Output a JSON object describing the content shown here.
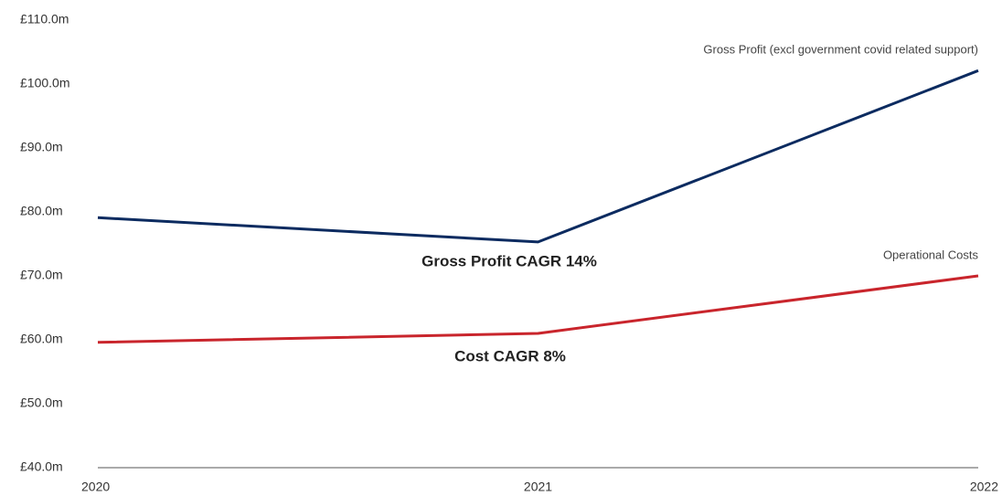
{
  "chart_data": {
    "type": "line",
    "categories": [
      "2020",
      "2021",
      "2022"
    ],
    "series": [
      {
        "name": "Gross Profit (excl government covid related support)",
        "color": "#0c2b60",
        "values": [
          79.1,
          75.3,
          102.1
        ]
      },
      {
        "name": "Operational Costs",
        "color": "#c9252c",
        "values": [
          59.6,
          61.0,
          70.0
        ]
      }
    ],
    "annotations": [
      "Gross Profit CAGR 14%",
      "Cost CAGR 8%"
    ],
    "ylim": [
      40,
      110
    ],
    "yticks": [
      {
        "value": 40,
        "label": "£40.0m"
      },
      {
        "value": 50,
        "label": "£50.0m"
      },
      {
        "value": 60,
        "label": "£60.0m"
      },
      {
        "value": 70,
        "label": "£70.0m"
      },
      {
        "value": 80,
        "label": "£80.0m"
      },
      {
        "value": 90,
        "label": "£90.0m"
      },
      {
        "value": 100,
        "label": "£100.0m"
      },
      {
        "value": 110,
        "label": "£110.0m"
      }
    ],
    "grid": false
  }
}
